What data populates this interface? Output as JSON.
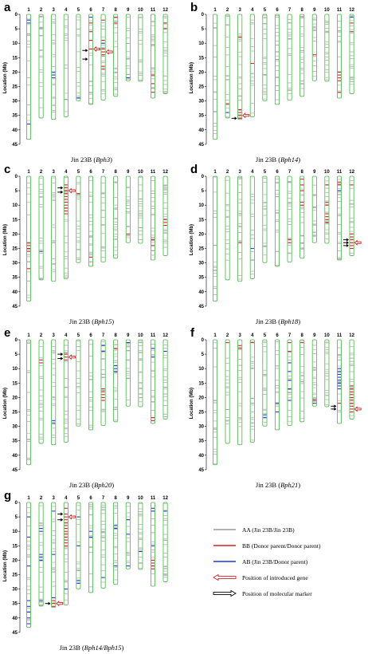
{
  "legend": [
    {
      "label": "AA (Jin 23B/Jin 23B)",
      "kind": "line",
      "color": "#9a9a9a"
    },
    {
      "label": "BB (Donor parent/Donor parent)",
      "kind": "line",
      "color": "#d42020"
    },
    {
      "label": "AB (Jin 23B/Donor parent)",
      "kind": "line",
      "color": "#1a3fd0"
    },
    {
      "label": "Position of introduced gene",
      "kind": "arrow",
      "color": "#d42020"
    },
    {
      "label": "Position of molecular marker",
      "kind": "arrow",
      "color": "#000000"
    }
  ],
  "y_axis": {
    "label": "Location (Mb)",
    "ticks": [
      0,
      5,
      10,
      15,
      20,
      25,
      30,
      35,
      40,
      45
    ]
  },
  "chromosome_lengths_mb": [
    43.3,
    35.9,
    36.4,
    35.5,
    29.9,
    31.2,
    29.7,
    28.4,
    23.0,
    23.2,
    29.0,
    27.5
  ],
  "panels": [
    {
      "letter": "a",
      "caption_prefix": "Jin 23B (",
      "gene": "Bph3",
      "caption_suffix": ")",
      "gene_arrows": [
        {
          "chr": 6,
          "pos": 12
        },
        {
          "chr": 7,
          "pos": 13
        }
      ],
      "marker_arrows": [
        {
          "chr": 6,
          "pos": 12.5
        },
        {
          "chr": 6,
          "pos": 15.5
        }
      ],
      "bb": [
        {
          "chr": 6,
          "pos": [
            3,
            6,
            9,
            12
          ]
        },
        {
          "chr": 7,
          "pos": [
            2,
            9,
            12,
            13,
            14,
            18,
            19
          ]
        },
        {
          "chr": 8,
          "pos": [
            1,
            3
          ]
        },
        {
          "chr": 11,
          "pos": [
            21,
            24,
            27
          ]
        },
        {
          "chr": 12,
          "pos": [
            3,
            5
          ]
        }
      ],
      "ab": [
        {
          "chr": 1,
          "pos": [
            2,
            3,
            38
          ]
        },
        {
          "chr": 3,
          "pos": [
            20,
            21,
            22
          ]
        },
        {
          "chr": 5,
          "pos": [
            29
          ]
        },
        {
          "chr": 6,
          "pos": [
            1
          ]
        },
        {
          "chr": 7,
          "pos": [
            10
          ]
        },
        {
          "chr": 9,
          "pos": [
            22
          ]
        }
      ]
    },
    {
      "letter": "b",
      "caption_prefix": "Jin 23B (",
      "gene": "Bph14",
      "caption_suffix": ")",
      "gene_arrows": [
        {
          "chr": 3,
          "pos": 35
        }
      ],
      "marker_arrows": [
        {
          "chr": 3,
          "pos": 36
        }
      ],
      "bb": [
        {
          "chr": 2,
          "pos": 31,
          "x": 0
        },
        {
          "chr": 3,
          "pos": [
            8,
            33,
            34,
            35,
            36
          ]
        },
        {
          "chr": 4,
          "pos": [
            17
          ]
        },
        {
          "chr": 9,
          "pos": [
            14
          ]
        },
        {
          "chr": 11,
          "pos": [
            20,
            21,
            22,
            23,
            27
          ]
        },
        {
          "chr": 12,
          "pos": [
            3,
            6
          ]
        }
      ],
      "ab": [
        {
          "chr": 2,
          "pos": [
            34
          ]
        },
        {
          "chr": 12,
          "pos": [
            1
          ]
        }
      ]
    },
    {
      "letter": "c",
      "caption_prefix": "Jin 23B (",
      "gene": "Bph15",
      "caption_suffix": ")",
      "gene_arrows": [
        {
          "chr": 4,
          "pos": 5
        }
      ],
      "marker_arrows": [
        {
          "chr": 4,
          "pos": 4
        },
        {
          "chr": 4,
          "pos": 5.5
        }
      ],
      "bb": [
        {
          "chr": 1,
          "pos": [
            23,
            24,
            25,
            26,
            32
          ]
        },
        {
          "chr": 4,
          "pos": [
            3,
            4,
            5,
            6,
            7,
            8,
            9,
            10,
            11,
            12,
            13
          ]
        },
        {
          "chr": 5,
          "pos": [
            6
          ]
        },
        {
          "chr": 6,
          "pos": [
            28
          ]
        },
        {
          "chr": 9,
          "pos": [
            20
          ]
        },
        {
          "chr": 11,
          "pos": [
            22,
            24
          ]
        },
        {
          "chr": 12,
          "pos": [
            15,
            16,
            17
          ]
        }
      ],
      "ab": [
        {
          "chr": 2,
          "pos": [
            26
          ]
        }
      ]
    },
    {
      "letter": "d",
      "caption_prefix": "Jin 23B (",
      "gene": "Bph18",
      "caption_suffix": ")",
      "gene_arrows": [
        {
          "chr": 12,
          "pos": 23
        }
      ],
      "marker_arrows": [
        {
          "chr": 12,
          "pos": 22
        },
        {
          "chr": 12,
          "pos": 23
        },
        {
          "chr": 12,
          "pos": 24
        }
      ],
      "bb": [
        {
          "chr": 3,
          "pos": [
            23
          ]
        },
        {
          "chr": 7,
          "pos": [
            22,
            23
          ]
        },
        {
          "chr": 8,
          "pos": [
            1,
            3,
            5,
            9,
            10
          ]
        },
        {
          "chr": 10,
          "pos": [
            3,
            9,
            10,
            13,
            14,
            15,
            16
          ]
        },
        {
          "chr": 11,
          "pos": [
            2,
            3
          ]
        },
        {
          "chr": 12,
          "pos": [
            3,
            20,
            21,
            22,
            23,
            24,
            25
          ]
        }
      ],
      "ab": [
        {
          "chr": 4,
          "pos": [
            25
          ]
        },
        {
          "chr": 11,
          "pos": [
            5
          ]
        }
      ]
    },
    {
      "letter": "e",
      "caption_prefix": "Jin 23B (",
      "gene": "Bph20",
      "caption_suffix": ")",
      "gene_arrows": [
        {
          "chr": 4,
          "pos": 6
        }
      ],
      "marker_arrows": [
        {
          "chr": 4,
          "pos": 5
        },
        {
          "chr": 4,
          "pos": 6.5
        }
      ],
      "bb": [
        {
          "chr": 2,
          "pos": [
            7,
            8
          ]
        },
        {
          "chr": 4,
          "pos": [
            5,
            6,
            7
          ]
        },
        {
          "chr": 7,
          "pos": [
            17,
            18,
            19,
            20,
            21
          ]
        },
        {
          "chr": 8,
          "pos": [
            3
          ]
        },
        {
          "chr": 11,
          "pos": [
            27,
            28
          ]
        }
      ],
      "ab": [
        {
          "chr": 3,
          "pos": [
            28,
            29
          ]
        },
        {
          "chr": 7,
          "pos": [
            2,
            4
          ]
        },
        {
          "chr": 8,
          "pos": [
            9,
            10,
            11
          ]
        },
        {
          "chr": 9,
          "pos": [
            1
          ]
        },
        {
          "chr": 11,
          "pos": [
            3,
            6
          ]
        },
        {
          "chr": 12,
          "pos": [
            4
          ]
        }
      ]
    },
    {
      "letter": "f",
      "caption_prefix": "Jin 23B (",
      "gene": "Bph21",
      "caption_suffix": ")",
      "gene_arrows": [
        {
          "chr": 12,
          "pos": 24
        }
      ],
      "marker_arrows": [
        {
          "chr": 11,
          "pos": 23
        },
        {
          "chr": 11,
          "pos": 24
        }
      ],
      "bb": [
        {
          "chr": 2,
          "pos": [
            1
          ]
        },
        {
          "chr": 3,
          "pos": [
            2,
            3
          ]
        },
        {
          "chr": 4,
          "pos": [
            1
          ]
        },
        {
          "chr": 7,
          "pos": [
            1,
            4
          ]
        },
        {
          "chr": 8,
          "pos": [
            1
          ]
        },
        {
          "chr": 9,
          "pos": [
            21
          ]
        },
        {
          "chr": 11,
          "pos": [
            22
          ]
        },
        {
          "chr": 12,
          "pos": [
            16,
            17,
            18,
            19,
            20,
            21,
            22,
            23,
            24,
            25
          ]
        }
      ],
      "ab": [
        {
          "chr": 5,
          "pos": [
            26,
            27
          ]
        },
        {
          "chr": 6,
          "pos": [
            22,
            25
          ]
        },
        {
          "chr": 7,
          "pos": [
            8,
            11,
            14,
            17,
            21
          ]
        },
        {
          "chr": 9,
          "pos": [
            22
          ]
        },
        {
          "chr": 11,
          "pos": [
            10,
            11,
            12,
            13,
            14,
            15,
            16,
            17
          ]
        }
      ]
    },
    {
      "letter": "g",
      "caption_prefix": "Jin 23B (",
      "gene": "Bph14/Bph15",
      "caption_suffix": ")",
      "gene_arrows": [
        {
          "chr": 4,
          "pos": 5
        },
        {
          "chr": 3,
          "pos": 35
        }
      ],
      "marker_arrows": [
        {
          "chr": 4,
          "pos": 4
        },
        {
          "chr": 4,
          "pos": 6
        },
        {
          "chr": 3,
          "pos": 35
        }
      ],
      "bb": [
        {
          "chr": 3,
          "pos": [
            33,
            34,
            35,
            36
          ]
        },
        {
          "chr": 4,
          "pos": [
            2,
            4,
            5,
            6,
            7,
            8,
            9,
            10,
            11,
            12,
            13,
            14,
            15
          ]
        },
        {
          "chr": 11,
          "pos": [
            20,
            21,
            22,
            23
          ]
        }
      ],
      "ab": [
        {
          "chr": 1,
          "pos": [
            5,
            12,
            22,
            34,
            36,
            38,
            40,
            42
          ]
        },
        {
          "chr": 2,
          "pos": [
            9,
            10,
            18,
            19,
            20,
            34
          ]
        },
        {
          "chr": 3,
          "pos": [
            3,
            18,
            33
          ]
        },
        {
          "chr": 4,
          "pos": [
            30
          ]
        },
        {
          "chr": 5,
          "pos": [
            5,
            15,
            27,
            28
          ]
        },
        {
          "chr": 6,
          "pos": [
            10,
            12
          ]
        },
        {
          "chr": 7,
          "pos": [
            26
          ]
        },
        {
          "chr": 8,
          "pos": [
            8,
            9,
            22
          ]
        },
        {
          "chr": 9,
          "pos": [
            6,
            11,
            22
          ]
        },
        {
          "chr": 10,
          "pos": [
            17
          ]
        },
        {
          "chr": 11,
          "pos": [
            2,
            3,
            15
          ]
        },
        {
          "chr": 12,
          "pos": [
            3
          ]
        }
      ]
    }
  ]
}
